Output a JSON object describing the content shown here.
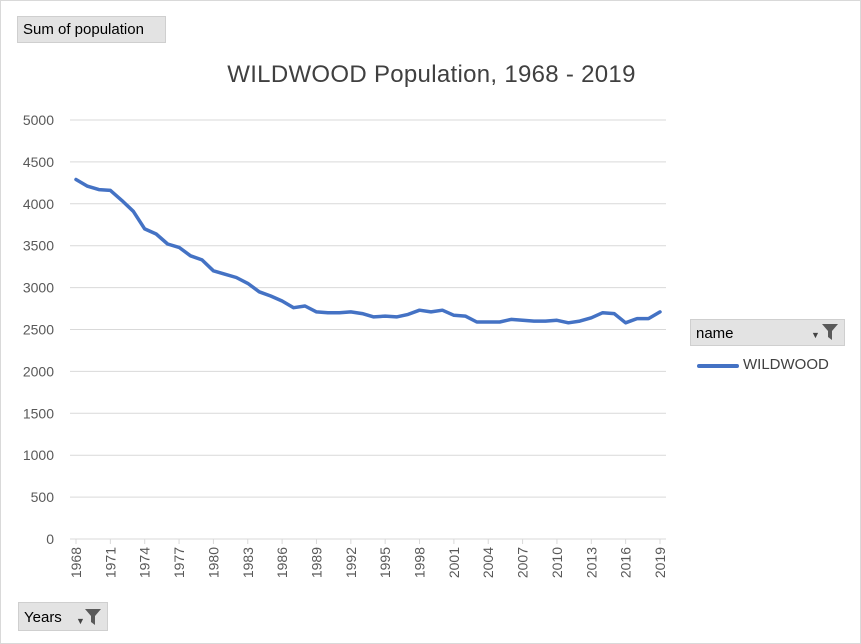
{
  "pivot": {
    "values_field": "Sum of population",
    "axis_field": "Years",
    "legend_field": "name"
  },
  "legend": {
    "entries": [
      "WILDWOOD"
    ]
  },
  "colors": {
    "series": "#4472c4",
    "grid": "#d9d9d9",
    "text": "#595959",
    "button": "#e3e3e3"
  },
  "chart_data": {
    "type": "line",
    "title": "WILDWOOD Population, 1968 - 2019",
    "xlabel": "",
    "ylabel": "",
    "ylim": [
      0,
      5000
    ],
    "yticks": [
      0,
      500,
      1000,
      1500,
      2000,
      2500,
      3000,
      3500,
      4000,
      4500,
      5000
    ],
    "xtick_labels": [
      "1968",
      "1971",
      "1974",
      "1977",
      "1980",
      "1983",
      "1986",
      "1989",
      "1992",
      "1995",
      "1998",
      "2001",
      "2004",
      "2007",
      "2010",
      "2013",
      "2016",
      "2019"
    ],
    "grid": true,
    "legend_position": "right",
    "x": [
      1968,
      1969,
      1970,
      1971,
      1972,
      1973,
      1974,
      1975,
      1976,
      1977,
      1978,
      1979,
      1980,
      1981,
      1982,
      1983,
      1984,
      1985,
      1986,
      1987,
      1988,
      1989,
      1990,
      1991,
      1992,
      1993,
      1994,
      1995,
      1996,
      1997,
      1998,
      1999,
      2000,
      2001,
      2002,
      2003,
      2004,
      2005,
      2006,
      2007,
      2008,
      2009,
      2010,
      2011,
      2012,
      2013,
      2014,
      2015,
      2016,
      2017,
      2018,
      2019
    ],
    "series": [
      {
        "name": "WILDWOOD",
        "values": [
          4290,
          4210,
          4170,
          4160,
          4040,
          3910,
          3700,
          3640,
          3520,
          3480,
          3380,
          3330,
          3200,
          3160,
          3120,
          3050,
          2950,
          2900,
          2840,
          2760,
          2780,
          2710,
          2700,
          2700,
          2710,
          2690,
          2650,
          2660,
          2650,
          2680,
          2730,
          2710,
          2730,
          2670,
          2660,
          2590,
          2590,
          2590,
          2620,
          2610,
          2600,
          2600,
          2610,
          2580,
          2600,
          2640,
          2700,
          2690,
          2580,
          2630,
          2630,
          2710
        ]
      }
    ]
  }
}
